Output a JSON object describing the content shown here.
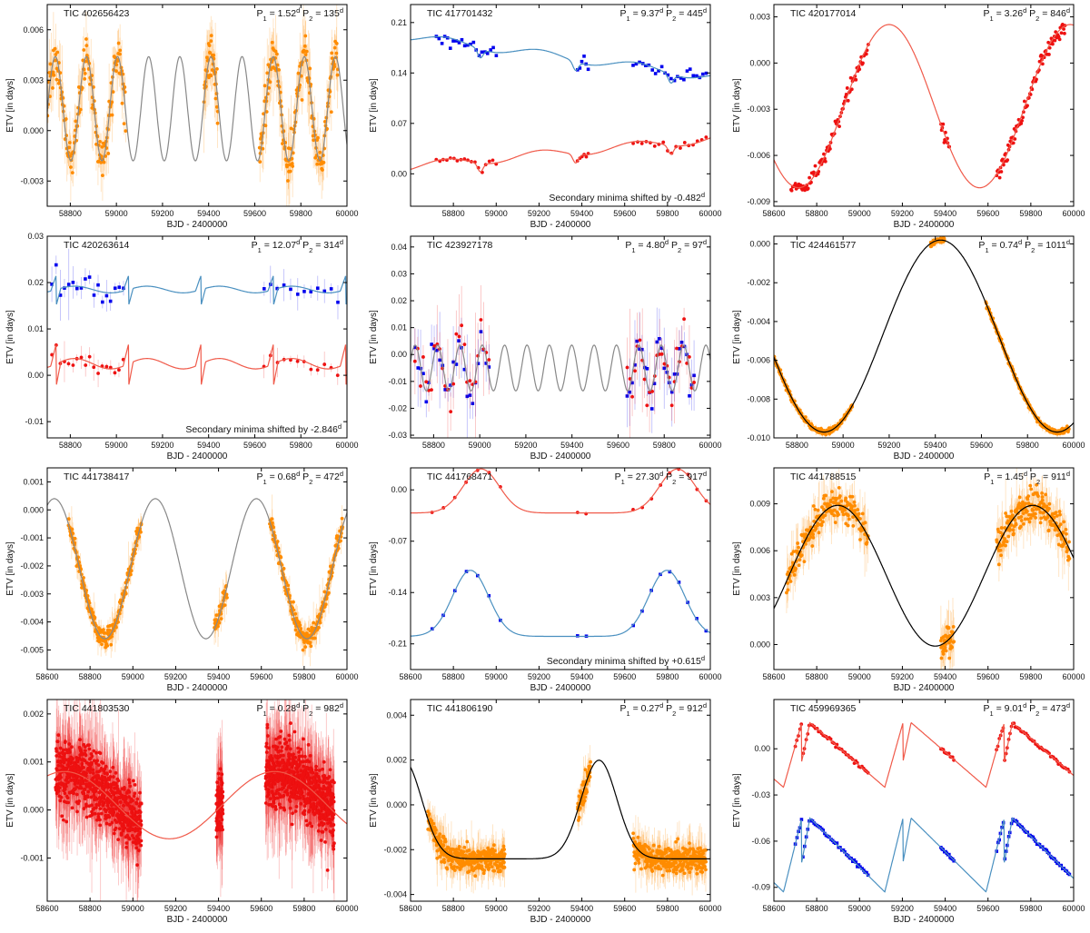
{
  "panels": [
    {
      "id": "p1",
      "tic": "TIC 402656423",
      "p1": "1.52",
      "p2": "135",
      "xlabel": "BJD - 2400000",
      "ylabel": "ETV [in days]",
      "note": "",
      "xlim": [
        58700,
        60000
      ],
      "xticks": [
        58800,
        59000,
        59200,
        59400,
        59600,
        59800,
        60000
      ],
      "ylim": [
        -0.0045,
        0.0075
      ],
      "yticks": [
        "-0.003",
        "0.000",
        "0.003",
        "0.006"
      ],
      "chart_data": {
        "type": "scatter",
        "model": {
          "kind": "sine",
          "color": "#888888",
          "off": 0.0013,
          "amp": 0.0031,
          "period": 135,
          "phase": 58735,
          "x0": 58700,
          "x1": 60000
        },
        "series": [
          {
            "marker": "dot",
            "color": "#ff8c00",
            "err": true,
            "spread": 0.0012,
            "segments": [
              [
                58700,
                59040,
                160
              ],
              [
                59380,
                59440,
                40
              ],
              [
                59620,
                59960,
                170
              ]
            ]
          }
        ]
      }
    },
    {
      "id": "p2",
      "tic": "TIC 417701432",
      "p1": "9.37",
      "p2": "445",
      "xlabel": "BJD - 2400000",
      "ylabel": "ETV [in days]",
      "note": "Secondary minima shifted by -0.482",
      "xlim": [
        58600,
        60000
      ],
      "xticks": [
        58800,
        59000,
        59200,
        59400,
        59600,
        59800,
        60000
      ],
      "ylim": [
        -0.045,
        0.235
      ],
      "yticks": [
        "0.00",
        "0.07",
        "0.14",
        "0.21"
      ],
      "chart_data": {
        "type": "scatter",
        "models": [
          {
            "kind": "linwave",
            "color": "#4a90c0",
            "a": 0.19,
            "slope": -3.93e-05,
            "amp": 0.012,
            "period": 445,
            "phase": 58650,
            "x0": 58600,
            "x1": 60000
          },
          {
            "kind": "linwave",
            "color": "#f05a4a",
            "a": 0.01,
            "slope": 2.75e-05,
            "amp": 0.012,
            "period": 445,
            "phase": 58650,
            "x0": 58600,
            "x1": 60000
          }
        ],
        "series": [
          {
            "marker": "square",
            "color": "#0000ee",
            "err": false,
            "model": 0,
            "spread": 0.008,
            "segments": [
              [
                58720,
                59000,
                22
              ],
              [
                59380,
                59430,
                6
              ],
              [
                59640,
                59980,
                24
              ]
            ]
          },
          {
            "marker": "dot",
            "color": "#ee1111",
            "err": false,
            "model": 1,
            "spread": 0.004,
            "segments": [
              [
                58720,
                59000,
                18
              ],
              [
                59380,
                59430,
                6
              ],
              [
                59640,
                59980,
                18
              ]
            ]
          }
        ]
      }
    },
    {
      "id": "p3",
      "tic": "TIC 420177014",
      "p1": "3.26",
      "p2": "846",
      "xlabel": "BJD - 2400000",
      "ylabel": "ETV [in days]",
      "note": "",
      "xlim": [
        58600,
        60000
      ],
      "xticks": [
        58600,
        58800,
        59000,
        59200,
        59400,
        59600,
        59800,
        60000
      ],
      "ylim": [
        -0.0093,
        0.0038
      ],
      "yticks": [
        "-0.009",
        "-0.006",
        "-0.003",
        "0.000",
        "0.003"
      ],
      "chart_data": {
        "type": "scatter",
        "model": {
          "kind": "sine",
          "color": "#f05a4a",
          "off": -0.0028,
          "amp": 0.0053,
          "period": 846,
          "phase": 59138,
          "x0": 58600,
          "x1": 60000
        },
        "series": [
          {
            "marker": "dot",
            "color": "#ee1111",
            "err": false,
            "spread": 0.0005,
            "segments": [
              [
                58680,
                59040,
                90
              ],
              [
                59380,
                59420,
                12
              ],
              [
                59640,
                59960,
                90
              ]
            ]
          }
        ]
      }
    },
    {
      "id": "p4",
      "tic": "TIC 420263614",
      "p1": "12.07",
      "p2": "314",
      "xlabel": "BJD - 2400000",
      "ylabel": "ETV [in days]",
      "note": "Secondary minima shifted by -2.846",
      "xlim": [
        58700,
        60000
      ],
      "xticks": [
        58800,
        59000,
        59200,
        59400,
        59600,
        59800,
        60000
      ],
      "ylim": [
        -0.0135,
        0.03
      ],
      "yticks": [
        "-0.01",
        "0.00",
        "0.01",
        "0.02",
        "0.03"
      ],
      "chart_data": {
        "type": "scatter",
        "models": [
          {
            "kind": "spiky",
            "color": "#4a90c0",
            "off": 0.0185,
            "amp": 0.0018,
            "spike": 0.0032,
            "period": 314,
            "phase": 58740,
            "x0": 58700,
            "x1": 60000
          },
          {
            "kind": "spiky",
            "color": "#f05a4a",
            "off": 0.0025,
            "amp": 0.0028,
            "spike": 0.0045,
            "period": 314,
            "phase": 58740,
            "x0": 58700,
            "x1": 60000
          }
        ],
        "series": [
          {
            "marker": "square",
            "color": "#0000ee",
            "err": true,
            "model": 0,
            "spread": 0.0025,
            "segments": [
              [
                58720,
                59030,
                18
              ],
              [
                59640,
                59960,
                12
              ]
            ]
          },
          {
            "marker": "dot",
            "color": "#ee1111",
            "err": true,
            "model": 1,
            "spread": 0.0015,
            "segments": [
              [
                58720,
                59030,
                18
              ],
              [
                59640,
                59960,
                12
              ]
            ]
          }
        ]
      }
    },
    {
      "id": "p5",
      "tic": "TIC 423927178",
      "p1": "4.80",
      "p2": "97",
      "xlabel": "BJD - 2400000",
      "ylabel": "ETV [in days]",
      "note": "",
      "xlim": [
        58700,
        60000
      ],
      "xticks": [
        58800,
        59000,
        59200,
        59400,
        59600,
        59800,
        60000
      ],
      "ylim": [
        -0.031,
        0.044
      ],
      "yticks": [
        "-0.03",
        "-0.02",
        "-0.01",
        "0.00",
        "0.01",
        "0.02",
        "0.03",
        "0.04"
      ],
      "chart_data": {
        "type": "scatter",
        "model": {
          "kind": "sine",
          "color": "#888888",
          "off": -0.005,
          "amp": 0.0085,
          "period": 97,
          "phase": 58720,
          "x0": 58700,
          "x1": 60000
        },
        "series": [
          {
            "marker": "square",
            "color": "#0000ee",
            "err": true,
            "spread": 0.009,
            "segments": [
              [
                58720,
                59040,
                28
              ],
              [
                59640,
                59930,
                28
              ]
            ]
          },
          {
            "marker": "dot",
            "color": "#ee1111",
            "err": true,
            "spread": 0.009,
            "segments": [
              [
                58720,
                59040,
                28
              ],
              [
                59640,
                59930,
                28
              ]
            ]
          }
        ]
      }
    },
    {
      "id": "p6",
      "tic": "TIC 424461577",
      "p1": "0.74",
      "p2": "1011",
      "xlabel": "BJD - 2400000",
      "ylabel": "ETV [in days]",
      "note": "",
      "xlim": [
        58700,
        60000
      ],
      "xticks": [
        58800,
        59000,
        59200,
        59400,
        59600,
        59800,
        60000
      ],
      "ylim": [
        -0.01,
        0.0004
      ],
      "yticks": [
        "-0.010",
        "-0.008",
        "-0.006",
        "-0.004",
        "-0.002",
        "0.000"
      ],
      "chart_data": {
        "type": "scatter",
        "model": {
          "kind": "sine",
          "color": "#000000",
          "off": -0.00475,
          "amp": 0.00495,
          "period": 1011,
          "phase": 59423,
          "x0": 58700,
          "x1": 60000
        },
        "series": [
          {
            "marker": "dot",
            "color": "#ff8c00",
            "err": true,
            "spread": 0.00012,
            "segments": [
              [
                58700,
                59040,
                220
              ],
              [
                59380,
                59440,
                50
              ],
              [
                59620,
                59980,
                220
              ]
            ]
          }
        ]
      }
    },
    {
      "id": "p7",
      "tic": "TIC 441738417",
      "p1": "0.68",
      "p2": "472",
      "xlabel": "BJD - 2400000",
      "ylabel": "ETV [in days]",
      "note": "",
      "xlim": [
        58600,
        60000
      ],
      "xticks": [
        58600,
        58800,
        59000,
        59200,
        59400,
        59600,
        59800,
        60000
      ],
      "ylim": [
        -0.0057,
        0.0015
      ],
      "yticks": [
        "-0.005",
        "-0.004",
        "-0.003",
        "-0.002",
        "-0.001",
        "0.000",
        "0.001"
      ],
      "chart_data": {
        "type": "scatter",
        "model": {
          "kind": "sine",
          "color": "#888888",
          "off": -0.0021,
          "amp": 0.0025,
          "period": 472,
          "phase": 58633,
          "x0": 58600,
          "x1": 60000
        },
        "series": [
          {
            "marker": "dot",
            "color": "#ff8c00",
            "err": true,
            "spread": 0.0003,
            "segments": [
              [
                58700,
                59040,
                220
              ],
              [
                59380,
                59440,
                40
              ],
              [
                59640,
                59980,
                220
              ]
            ]
          }
        ]
      }
    },
    {
      "id": "p8",
      "tic": "TIC 441768471",
      "p1": "27.30",
      "p2": "917",
      "xlabel": "BJD - 2400000",
      "ylabel": "ETV [in days]",
      "note": "Secondary minima shifted by +0.615",
      "xlim": [
        58600,
        60000
      ],
      "xticks": [
        58600,
        58800,
        59000,
        59200,
        59400,
        59600,
        59800,
        60000
      ],
      "ylim": [
        -0.245,
        0.03
      ],
      "yticks": [
        "0.00",
        "-0.07",
        "-0.14",
        "-0.21"
      ],
      "chart_data": {
        "type": "scatter",
        "models": [
          {
            "kind": "ecc",
            "color": "#f05a4a",
            "off": -0.015,
            "amp": 0.03,
            "period": 917,
            "phase": 58930,
            "tilt": 0,
            "x0": 58600,
            "x1": 60000
          },
          {
            "kind": "ecc",
            "color": "#4a90c0",
            "off": -0.175,
            "amp": 0.045,
            "period": 917,
            "phase": 58880,
            "tilt": -0.0,
            "x0": 58600,
            "x1": 60000
          }
        ],
        "series": [
          {
            "marker": "dot",
            "color": "#ee1111",
            "err": false,
            "model": 0,
            "spread": 0.002,
            "segments": [
              [
                58700,
                59020,
                7
              ],
              [
                59380,
                59420,
                2
              ],
              [
                59640,
                59980,
                9
              ]
            ]
          },
          {
            "marker": "square",
            "color": "#0000ee",
            "err": false,
            "model": 1,
            "spread": 0.002,
            "segments": [
              [
                58700,
                59020,
                7
              ],
              [
                59380,
                59420,
                2
              ],
              [
                59640,
                59980,
                9
              ]
            ]
          }
        ]
      }
    },
    {
      "id": "p9",
      "tic": "TIC 441788515",
      "p1": "1.45",
      "p2": "911",
      "xlabel": "BJD - 2400000",
      "ylabel": "ETV [in days]",
      "note": "",
      "xlim": [
        58600,
        60000
      ],
      "xticks": [
        58600,
        58800,
        59000,
        59200,
        59400,
        59600,
        59800,
        60000
      ],
      "ylim": [
        -0.0016,
        0.0113
      ],
      "yticks": [
        "0.000",
        "0.003",
        "0.006",
        "0.009"
      ],
      "chart_data": {
        "type": "scatter",
        "model": {
          "kind": "sine",
          "color": "#000000",
          "off": 0.0044,
          "amp": 0.0045,
          "period": 911,
          "phase": 58898,
          "x0": 58600,
          "x1": 60000
        },
        "series": [
          {
            "marker": "dot",
            "color": "#ff8c00",
            "err": true,
            "spread": 0.0009,
            "segments": [
              [
                58660,
                59040,
                200
              ],
              [
                59380,
                59440,
                40
              ],
              [
                59640,
                59980,
                200
              ]
            ]
          }
        ]
      }
    },
    {
      "id": "p10",
      "tic": "TIC 441803530",
      "p1": "0.28",
      "p2": "982",
      "xlabel": "BJD - 2400000",
      "ylabel": "ETV [in days]",
      "note": "",
      "xlim": [
        58600,
        60000
      ],
      "xticks": [
        58600,
        58800,
        59000,
        59200,
        59400,
        59600,
        59800,
        60000
      ],
      "ylim": [
        -0.0019,
        0.0023
      ],
      "yticks": [
        "-0.001",
        "0.000",
        "0.001",
        "0.002"
      ],
      "chart_data": {
        "type": "scatter",
        "model": {
          "kind": "sine",
          "color": "#f05a4a",
          "off": 0.0001,
          "amp": 0.0007,
          "period": 982,
          "phase": 58680,
          "x0": 58600,
          "x1": 60000
        },
        "series": [
          {
            "marker": "dot",
            "color": "#ee1111",
            "err": true,
            "spread": 0.0006,
            "segments": [
              [
                58640,
                59040,
                700
              ],
              [
                59390,
                59420,
                90
              ],
              [
                59620,
                59940,
                700
              ]
            ]
          }
        ]
      }
    },
    {
      "id": "p11",
      "tic": "TIC 441806190",
      "p1": "0.27",
      "p2": "912",
      "xlabel": "BJD - 2400000",
      "ylabel": "ETV [in days]",
      "note": "",
      "xlim": [
        58600,
        60000
      ],
      "xticks": [
        58600,
        58800,
        59000,
        59200,
        59400,
        59600,
        59800,
        60000
      ],
      "ylim": [
        -0.0043,
        0.0047
      ],
      "yticks": [
        "-0.004",
        "-0.002",
        "0.000",
        "0.002",
        "0.004"
      ],
      "chart_data": {
        "type": "scatter",
        "model": {
          "kind": "ecc",
          "color": "#000000",
          "off": -0.0012,
          "amp": 0.0022,
          "period": 912,
          "phase": 59480,
          "tilt": 0,
          "x0": 58600,
          "x1": 60000
        },
        "series": [
          {
            "marker": "dot",
            "color": "#ff8c00",
            "err": true,
            "spread": 0.0005,
            "segments": [
              [
                58680,
                59040,
                350
              ],
              [
                59380,
                59440,
                60
              ],
              [
                59640,
                59980,
                350
              ]
            ]
          }
        ]
      }
    },
    {
      "id": "p12",
      "tic": "TIC 459969365",
      "p1": "9.01",
      "p2": "473",
      "xlabel": "BJD - 2400000",
      "ylabel": "ETV [in days]",
      "note": "",
      "xlim": [
        58600,
        60000
      ],
      "xticks": [
        58600,
        58800,
        59000,
        59200,
        59400,
        59600,
        59800,
        60000
      ],
      "ylim": [
        -0.099,
        0.032
      ],
      "yticks": [
        "0.00",
        "-0.03",
        "-0.06",
        "-0.09"
      ],
      "chart_data": {
        "type": "scatter",
        "models": [
          {
            "kind": "saw",
            "color": "#f05a4a",
            "hi": 0.017,
            "lo": -0.025,
            "period": 473,
            "phase": 58730,
            "x0": 58600,
            "x1": 60000
          },
          {
            "kind": "saw",
            "color": "#4a90c0",
            "hi": -0.045,
            "lo": -0.093,
            "period": 473,
            "phase": 58730,
            "x0": 58600,
            "x1": 60000
          }
        ],
        "series": [
          {
            "marker": "dot",
            "color": "#ee1111",
            "err": false,
            "model": 0,
            "spread": 0.001,
            "segments": [
              [
                58700,
                59040,
                48
              ],
              [
                59380,
                59440,
                12
              ],
              [
                59640,
                59980,
                55
              ]
            ]
          },
          {
            "marker": "square",
            "color": "#0000ee",
            "err": false,
            "model": 1,
            "spread": 0.001,
            "segments": [
              [
                58700,
                59040,
                48
              ],
              [
                59380,
                59440,
                12
              ],
              [
                59640,
                59980,
                55
              ]
            ]
          }
        ]
      }
    }
  ]
}
